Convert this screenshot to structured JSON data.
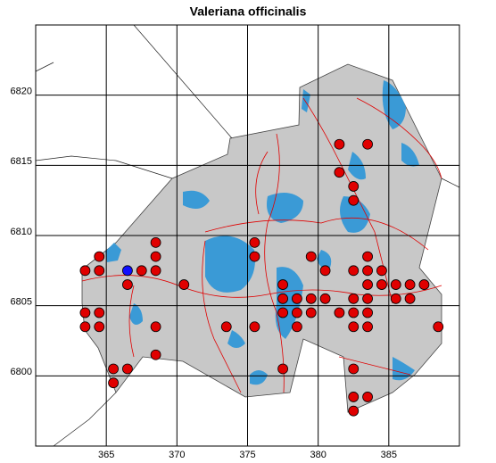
{
  "chart_data": {
    "type": "scatter",
    "title": "Valeriana officinalis",
    "xlim": [
      360,
      390
    ],
    "ylim": [
      6795,
      6825
    ],
    "xticks": [
      365,
      370,
      375,
      380,
      385
    ],
    "yticks": [
      6800,
      6805,
      6810,
      6815,
      6820
    ],
    "grid": true,
    "series": [
      {
        "color": "#e00000",
        "x": [
          381.5,
          383.5,
          381.5,
          382.5,
          382.5,
          368.5,
          375.5,
          364.5,
          368.5,
          375.5,
          379.5,
          383.5,
          363.5,
          364.5,
          367.5,
          368.5,
          380.5,
          382.5,
          383.5,
          384.5,
          366.5,
          370.5,
          377.5,
          383.5,
          384.5,
          385.5,
          386.5,
          387.5,
          377.5,
          378.5,
          379.5,
          380.5,
          382.5,
          383.5,
          385.5,
          386.5,
          363.5,
          364.5,
          377.5,
          378.5,
          379.5,
          381.5,
          382.5,
          383.5,
          363.5,
          364.5,
          368.5,
          373.5,
          375.5,
          378.5,
          382.5,
          383.5,
          388.5,
          368.5,
          365.5,
          366.5,
          377.5,
          382.5,
          365.5,
          382.5,
          383.5,
          382.5
        ],
        "y": [
          6816.5,
          6816.5,
          6814.5,
          6813.5,
          6812.5,
          6809.5,
          6809.5,
          6808.5,
          6808.5,
          6808.5,
          6808.5,
          6808.5,
          6807.5,
          6807.5,
          6807.5,
          6807.5,
          6807.5,
          6807.5,
          6807.5,
          6807.5,
          6806.5,
          6806.5,
          6806.5,
          6806.5,
          6806.5,
          6806.5,
          6806.5,
          6806.5,
          6805.5,
          6805.5,
          6805.5,
          6805.5,
          6805.5,
          6805.5,
          6805.5,
          6805.5,
          6804.5,
          6804.5,
          6804.5,
          6804.5,
          6804.5,
          6804.5,
          6804.5,
          6804.5,
          6803.5,
          6803.5,
          6803.5,
          6803.5,
          6803.5,
          6803.5,
          6803.5,
          6803.5,
          6803.5,
          6801.5,
          6800.5,
          6800.5,
          6800.5,
          6800.5,
          6799.5,
          6798.5,
          6798.5,
          6797.5
        ]
      },
      {
        "color": "#1010ff",
        "x": [
          366.5
        ],
        "y": [
          6807.5
        ]
      }
    ]
  }
}
